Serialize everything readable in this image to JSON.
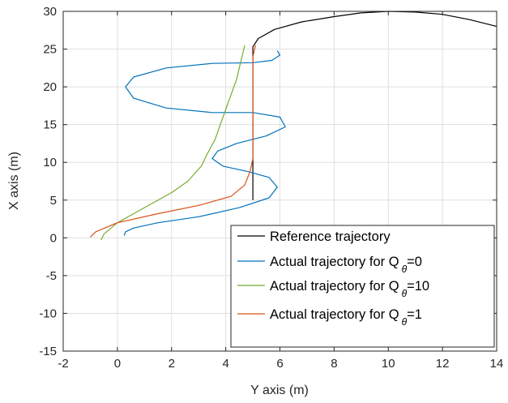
{
  "chart_data": {
    "type": "line",
    "xlabel": "Y axis (m)",
    "ylabel": "X axis (m)",
    "xlim": [
      -2,
      14
    ],
    "ylim": [
      -15,
      30
    ],
    "xticks": [
      -2,
      0,
      2,
      4,
      6,
      8,
      10,
      12,
      14
    ],
    "yticks": [
      -15,
      -10,
      -5,
      0,
      5,
      10,
      15,
      20,
      25,
      30
    ],
    "grid": true,
    "legend_position": "bottom-right",
    "legend_entries": [
      {
        "prefix": "Reference trajectory",
        "sub": "",
        "suffix": ""
      },
      {
        "prefix": "Actual trajectory for Q",
        "sub": "θ",
        "suffix": "=0"
      },
      {
        "prefix": "Actual trajectory for Q",
        "sub": "θ",
        "suffix": "=10"
      },
      {
        "prefix": "Actual trajectory for Q",
        "sub": "θ",
        "suffix": "=1"
      }
    ],
    "series": [
      {
        "color": "#000000",
        "x": [
          5.0,
          5.0,
          5.0,
          5.2,
          5.8,
          6.8,
          8.0,
          9.0,
          10.0,
          11.0,
          12.0,
          13.0,
          14.0
        ],
        "y": [
          5.0,
          15.0,
          25.3,
          26.4,
          27.6,
          28.6,
          29.3,
          29.8,
          30.0,
          29.9,
          29.6,
          28.9,
          28.0
        ]
      },
      {
        "color": "#0072BD",
        "x": [
          0.25,
          0.3,
          0.6,
          1.5,
          3.0,
          4.5,
          5.6,
          5.9,
          5.6,
          4.8,
          3.9,
          3.5,
          3.7,
          4.4,
          5.5,
          6.2,
          6.0,
          5.0,
          3.5,
          1.8,
          0.6,
          0.3,
          0.6,
          1.8,
          3.5,
          5.0,
          5.7,
          6.0,
          5.9
        ],
        "y": [
          0.3,
          0.8,
          1.3,
          2.0,
          2.8,
          4.0,
          5.3,
          6.7,
          8.0,
          8.8,
          9.5,
          10.5,
          11.5,
          12.5,
          13.5,
          14.7,
          16.0,
          16.6,
          16.6,
          17.2,
          18.5,
          20.0,
          21.3,
          22.5,
          23.1,
          23.2,
          23.5,
          24.2,
          24.8
        ]
      },
      {
        "color": "#77AC30",
        "x": [
          -0.6,
          -0.5,
          0.0,
          1.0,
          2.0,
          2.6,
          3.1,
          3.3,
          3.6,
          3.8,
          4.0,
          4.2,
          4.4,
          4.5,
          4.6,
          4.7
        ],
        "y": [
          -0.3,
          0.5,
          2.0,
          4.0,
          6.0,
          7.5,
          9.5,
          11.0,
          13.0,
          15.0,
          17.0,
          19.0,
          21.0,
          22.5,
          24.0,
          25.5
        ]
      },
      {
        "color": "#D95319",
        "x": [
          -1.0,
          -0.8,
          0.0,
          1.5,
          3.0,
          4.2,
          4.7,
          4.9,
          5.0,
          5.0,
          5.0,
          5.0,
          5.0,
          5.0,
          5.1
        ],
        "y": [
          0.1,
          0.8,
          2.0,
          3.2,
          4.3,
          5.5,
          7.0,
          8.8,
          10.5,
          12.5,
          15.0,
          18.0,
          21.0,
          24.0,
          25.5
        ]
      }
    ]
  }
}
